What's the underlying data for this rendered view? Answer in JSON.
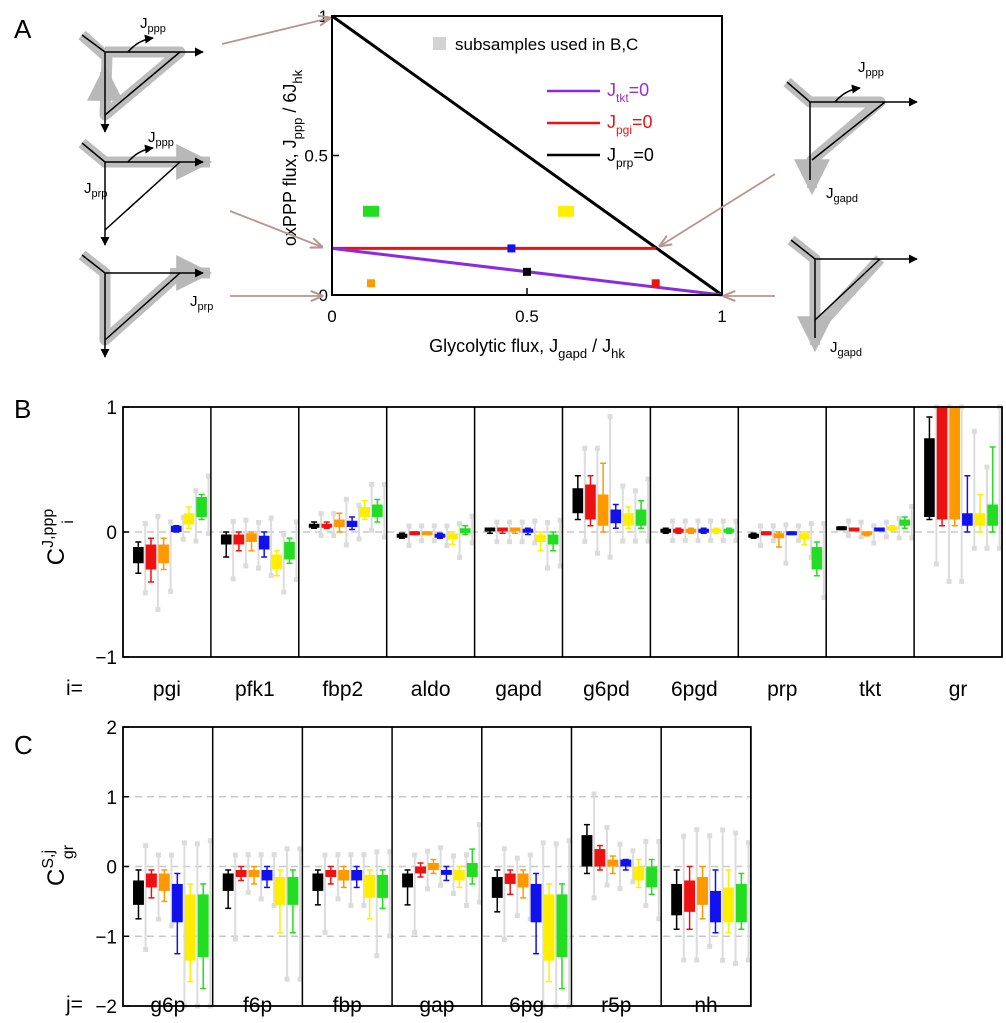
{
  "panel_labels": [
    "A",
    "B",
    "C"
  ],
  "chart_data": [
    {
      "id": "A",
      "type": "scatter",
      "xlabel": "Glycolytic flux, J",
      "xlabel_sub1": "gapd",
      "xlabel_mid": " / J",
      "xlabel_sub2": "hk",
      "ylabel": "oxPPP flux,  J",
      "ylabel_sub1": "ppp",
      "ylabel_mid": " / 6J",
      "ylabel_sub2": "hk",
      "xlim": [
        0,
        1
      ],
      "ylim": [
        0,
        1
      ],
      "xticks": [
        "0",
        "0.5",
        "1"
      ],
      "yticks": [
        "0",
        "0.5",
        "1"
      ],
      "legend_title": "subsamples used in B,C",
      "legend_items": [
        {
          "main": "J",
          "sub": "tkt",
          "suffix": "=0",
          "color": "#9b30c8"
        },
        {
          "main": "J",
          "sub": "pgi",
          "suffix": "=0",
          "color": "#ee1111"
        },
        {
          "main": "J",
          "sub": "prp",
          "suffix": "=0",
          "color": "#000000"
        }
      ],
      "lines": [
        {
          "name": "prp",
          "x": [
            0,
            1
          ],
          "y": [
            1,
            0
          ],
          "color": "#000000"
        },
        {
          "name": "pgi",
          "x": [
            0,
            0.83
          ],
          "y": [
            0.167,
            0.167
          ],
          "color": "#ee1111"
        },
        {
          "name": "tkt",
          "x": [
            0,
            1
          ],
          "y": [
            0.167,
            0
          ],
          "color": "#8b2be0"
        }
      ],
      "points": [
        {
          "x": 0.1,
          "y": 0.3,
          "color": "#22dd22"
        },
        {
          "x": 0.6,
          "y": 0.3,
          "color": "#ffee00"
        },
        {
          "x": 0.46,
          "y": 0.167,
          "color": "#1111ee"
        },
        {
          "x": 0.5,
          "y": 0.083,
          "color": "#000000"
        },
        {
          "x": 0.1,
          "y": 0.042,
          "color": "#ff9900"
        },
        {
          "x": 0.83,
          "y": 0.042,
          "color": "#ee1111"
        }
      ],
      "diagram_labels": {
        "d1": {
          "main": "J",
          "sub": "ppp"
        },
        "d2a": {
          "main": "J",
          "sub": "ppp"
        },
        "d2b": {
          "main": "J",
          "sub": "prp"
        },
        "d3": {
          "main": "J",
          "sub": "prp"
        },
        "d4a": {
          "main": "J",
          "sub": "ppp"
        },
        "d4b": {
          "main": "J",
          "sub": "gapd"
        },
        "d5": {
          "main": "J",
          "sub": "gapd"
        }
      }
    },
    {
      "id": "B",
      "type": "box",
      "ylim": [
        -1,
        1
      ],
      "yticks": [
        "−1",
        "0",
        "1"
      ],
      "dashed_lines": [
        0
      ],
      "ylabel_main": "C",
      "ylabel_sup": "J,ppp",
      "ylabel_sub": "i",
      "row_prefix": "i=",
      "categories": [
        "pgi",
        "pfk1",
        "fbp2",
        "aldo",
        "gapd",
        "g6pd",
        "6pgd",
        "prp",
        "tkt",
        "gr"
      ],
      "series_colors": [
        "#000000",
        "#ee1111",
        "#ff9900",
        "#1111ee",
        "#ffee00",
        "#22dd22"
      ],
      "data": [
        [
          [
            -0.33,
            -0.25,
            -0.2,
            -0.12,
            -0.08
          ],
          [
            -0.4,
            -0.3,
            -0.2,
            -0.1,
            -0.05
          ],
          [
            -0.3,
            -0.25,
            -0.15,
            -0.1,
            -0.05
          ],
          [
            0.0,
            0.0,
            0.02,
            0.05,
            0.05
          ],
          [
            0.03,
            0.06,
            0.1,
            0.15,
            0.2
          ],
          [
            0.1,
            0.12,
            0.18,
            0.28,
            0.3
          ]
        ],
        [
          [
            -0.2,
            -0.1,
            -0.05,
            -0.02,
            0.0
          ],
          [
            -0.15,
            -0.1,
            -0.06,
            -0.02,
            0.0
          ],
          [
            -0.15,
            -0.08,
            -0.04,
            -0.01,
            0.0
          ],
          [
            -0.2,
            -0.14,
            -0.08,
            -0.03,
            0.0
          ],
          [
            -0.35,
            -0.3,
            -0.25,
            -0.18,
            -0.15
          ],
          [
            -0.25,
            -0.22,
            -0.15,
            -0.08,
            -0.05
          ]
        ],
        [
          [
            0.03,
            0.04,
            0.05,
            0.07,
            0.08
          ],
          [
            0.03,
            0.04,
            0.05,
            0.07,
            0.08
          ],
          [
            0.0,
            0.04,
            0.07,
            0.1,
            0.15
          ],
          [
            0.02,
            0.04,
            0.06,
            0.09,
            0.12
          ],
          [
            0.1,
            0.12,
            0.15,
            0.2,
            0.25
          ],
          [
            0.08,
            0.12,
            0.17,
            0.22,
            0.26
          ]
        ],
        [
          [
            -0.05,
            -0.04,
            -0.03,
            -0.02,
            -0.01
          ],
          [
            -0.02,
            -0.015,
            -0.01,
            -0.005,
            0.0
          ],
          [
            -0.02,
            -0.015,
            -0.01,
            -0.005,
            0.0
          ],
          [
            -0.05,
            -0.04,
            -0.03,
            -0.02,
            -0.01
          ],
          [
            -0.1,
            -0.06,
            -0.03,
            -0.01,
            0.0
          ],
          [
            -0.02,
            -0.01,
            0.01,
            0.03,
            0.05
          ]
        ],
        [
          [
            -0.01,
            0.0,
            0.02,
            0.03,
            0.03
          ],
          [
            -0.01,
            0.0,
            0.02,
            0.03,
            0.03
          ],
          [
            -0.01,
            0.0,
            0.02,
            0.03,
            0.03
          ],
          [
            -0.02,
            0.0,
            0.01,
            0.03,
            0.03
          ],
          [
            -0.15,
            -0.08,
            -0.04,
            -0.02,
            0.0
          ],
          [
            -0.15,
            -0.1,
            -0.06,
            -0.02,
            0.0
          ]
        ],
        [
          [
            0.1,
            0.15,
            0.25,
            0.35,
            0.45
          ],
          [
            0.05,
            0.1,
            0.25,
            0.38,
            0.45
          ],
          [
            0.0,
            0.05,
            0.18,
            0.3,
            0.55
          ],
          [
            0.03,
            0.07,
            0.1,
            0.18,
            0.22
          ],
          [
            0.03,
            0.05,
            0.1,
            0.15,
            0.2
          ],
          [
            0.03,
            0.05,
            0.1,
            0.18,
            0.25
          ]
        ],
        [
          [
            -0.01,
            0.0,
            0.01,
            0.02,
            0.03
          ],
          [
            -0.01,
            0.0,
            0.01,
            0.02,
            0.03
          ],
          [
            -0.01,
            0.0,
            0.01,
            0.02,
            0.03
          ],
          [
            -0.01,
            0.0,
            0.01,
            0.02,
            0.03
          ],
          [
            -0.01,
            0.0,
            0.01,
            0.02,
            0.03
          ],
          [
            -0.01,
            0.0,
            0.01,
            0.02,
            0.03
          ]
        ],
        [
          [
            -0.05,
            -0.04,
            -0.03,
            -0.02,
            -0.01
          ],
          [
            -0.02,
            -0.015,
            -0.01,
            -0.005,
            0.0
          ],
          [
            -0.12,
            -0.05,
            -0.02,
            -0.01,
            0.0
          ],
          [
            -0.02,
            -0.015,
            -0.01,
            -0.005,
            0.0
          ],
          [
            -0.1,
            -0.06,
            -0.03,
            -0.01,
            0.0
          ],
          [
            -0.35,
            -0.3,
            -0.2,
            -0.12,
            -0.08
          ]
        ],
        [
          [
            0.02,
            0.02,
            0.03,
            0.03,
            0.04
          ],
          [
            0.01,
            0.015,
            0.02,
            0.025,
            0.03
          ],
          [
            -0.03,
            -0.02,
            -0.01,
            0.0,
            0.0
          ],
          [
            0.01,
            0.015,
            0.02,
            0.025,
            0.03
          ],
          [
            0.01,
            0.02,
            0.03,
            0.04,
            0.05
          ],
          [
            0.03,
            0.05,
            0.07,
            0.1,
            0.12
          ]
        ],
        [
          [
            0.1,
            0.12,
            0.45,
            0.75,
            0.92
          ],
          [
            0.05,
            0.1,
            0.5,
            1.0,
            1.0
          ],
          [
            0.05,
            0.1,
            0.5,
            1.0,
            1.0
          ],
          [
            0.0,
            0.05,
            0.1,
            0.15,
            0.45
          ],
          [
            0.0,
            0.05,
            0.1,
            0.15,
            0.3
          ],
          [
            0.0,
            0.05,
            0.1,
            0.22,
            0.68
          ]
        ]
      ]
    },
    {
      "id": "C",
      "type": "box",
      "ylim": [
        -2,
        2
      ],
      "yticks": [
        "−2",
        "−1",
        "0",
        "1",
        "2"
      ],
      "dashed_lines": [
        1,
        0,
        -1
      ],
      "ylabel_main": "C",
      "ylabel_sup": "S,j",
      "ylabel_sub": "gr",
      "row_prefix": "j=",
      "categories": [
        "g6p",
        "f6p",
        "fbp",
        "gap",
        "6pg",
        "r5p",
        "nh"
      ],
      "series_colors": [
        "#000000",
        "#ee1111",
        "#ff9900",
        "#1111ee",
        "#ffee00",
        "#22dd22"
      ],
      "data": [
        [
          [
            -0.75,
            -0.55,
            -0.35,
            -0.2,
            -0.05
          ],
          [
            -0.45,
            -0.3,
            -0.2,
            -0.1,
            -0.05
          ],
          [
            -0.5,
            -0.35,
            -0.2,
            -0.1,
            -0.05
          ],
          [
            -1.25,
            -0.8,
            -0.5,
            -0.25,
            -0.1
          ],
          [
            -1.65,
            -1.35,
            -0.8,
            -0.4,
            -0.25
          ],
          [
            -1.75,
            -1.3,
            -0.85,
            -0.4,
            -0.25
          ]
        ],
        [
          [
            -0.6,
            -0.35,
            -0.2,
            -0.1,
            -0.05
          ],
          [
            -0.2,
            -0.15,
            -0.1,
            -0.05,
            0.0
          ],
          [
            -0.25,
            -0.15,
            -0.1,
            -0.05,
            0.0
          ],
          [
            -0.3,
            -0.2,
            -0.1,
            -0.05,
            0.0
          ],
          [
            -0.95,
            -0.55,
            -0.3,
            -0.15,
            -0.05
          ],
          [
            -0.95,
            -0.55,
            -0.3,
            -0.15,
            -0.05
          ]
        ],
        [
          [
            -0.55,
            -0.35,
            -0.2,
            -0.1,
            -0.05
          ],
          [
            -0.25,
            -0.15,
            -0.1,
            -0.05,
            0.0
          ],
          [
            -0.3,
            -0.2,
            -0.1,
            -0.05,
            0.0
          ],
          [
            -0.3,
            -0.2,
            -0.1,
            -0.05,
            0.0
          ],
          [
            -0.75,
            -0.45,
            -0.25,
            -0.12,
            -0.05
          ],
          [
            -0.6,
            -0.45,
            -0.25,
            -0.12,
            -0.05
          ]
        ],
        [
          [
            -0.55,
            -0.3,
            -0.2,
            -0.1,
            -0.05
          ],
          [
            -0.15,
            -0.1,
            -0.05,
            0.0,
            0.05
          ],
          [
            -0.1,
            -0.05,
            0.0,
            0.05,
            0.1
          ],
          [
            -0.2,
            -0.12,
            -0.08,
            -0.05,
            0.0
          ],
          [
            -0.3,
            -0.2,
            -0.1,
            -0.05,
            0.0
          ],
          [
            -0.25,
            -0.15,
            -0.05,
            0.05,
            0.25
          ]
        ],
        [
          [
            -0.65,
            -0.45,
            -0.3,
            -0.15,
            -0.05
          ],
          [
            -0.4,
            -0.25,
            -0.15,
            -0.1,
            -0.05
          ],
          [
            -0.45,
            -0.3,
            -0.2,
            -0.1,
            -0.05
          ],
          [
            -1.25,
            -0.8,
            -0.5,
            -0.25,
            -0.1
          ],
          [
            -1.65,
            -1.35,
            -0.8,
            -0.4,
            -0.25
          ],
          [
            -1.75,
            -1.3,
            -0.85,
            -0.4,
            -0.25
          ]
        ],
        [
          [
            -0.1,
            0.0,
            0.2,
            0.45,
            0.6
          ],
          [
            -0.05,
            0.0,
            0.1,
            0.25,
            0.3
          ],
          [
            -0.1,
            0.0,
            0.05,
            0.1,
            0.15
          ],
          [
            -0.05,
            0.0,
            0.05,
            0.1,
            0.1
          ],
          [
            -0.3,
            -0.2,
            -0.1,
            0.0,
            0.1
          ],
          [
            -0.4,
            -0.3,
            -0.1,
            0.0,
            0.1
          ]
        ],
        [
          [
            -0.9,
            -0.7,
            -0.5,
            -0.25,
            -0.05
          ],
          [
            -0.9,
            -0.65,
            -0.5,
            -0.2,
            0.0
          ],
          [
            -0.75,
            -0.55,
            -0.4,
            -0.15,
            0.0
          ],
          [
            -0.95,
            -0.8,
            -0.6,
            -0.35,
            -0.05
          ],
          [
            -0.95,
            -0.8,
            -0.55,
            -0.3,
            -0.05
          ],
          [
            -0.9,
            -0.8,
            -0.5,
            -0.25,
            -0.1
          ]
        ]
      ]
    }
  ]
}
